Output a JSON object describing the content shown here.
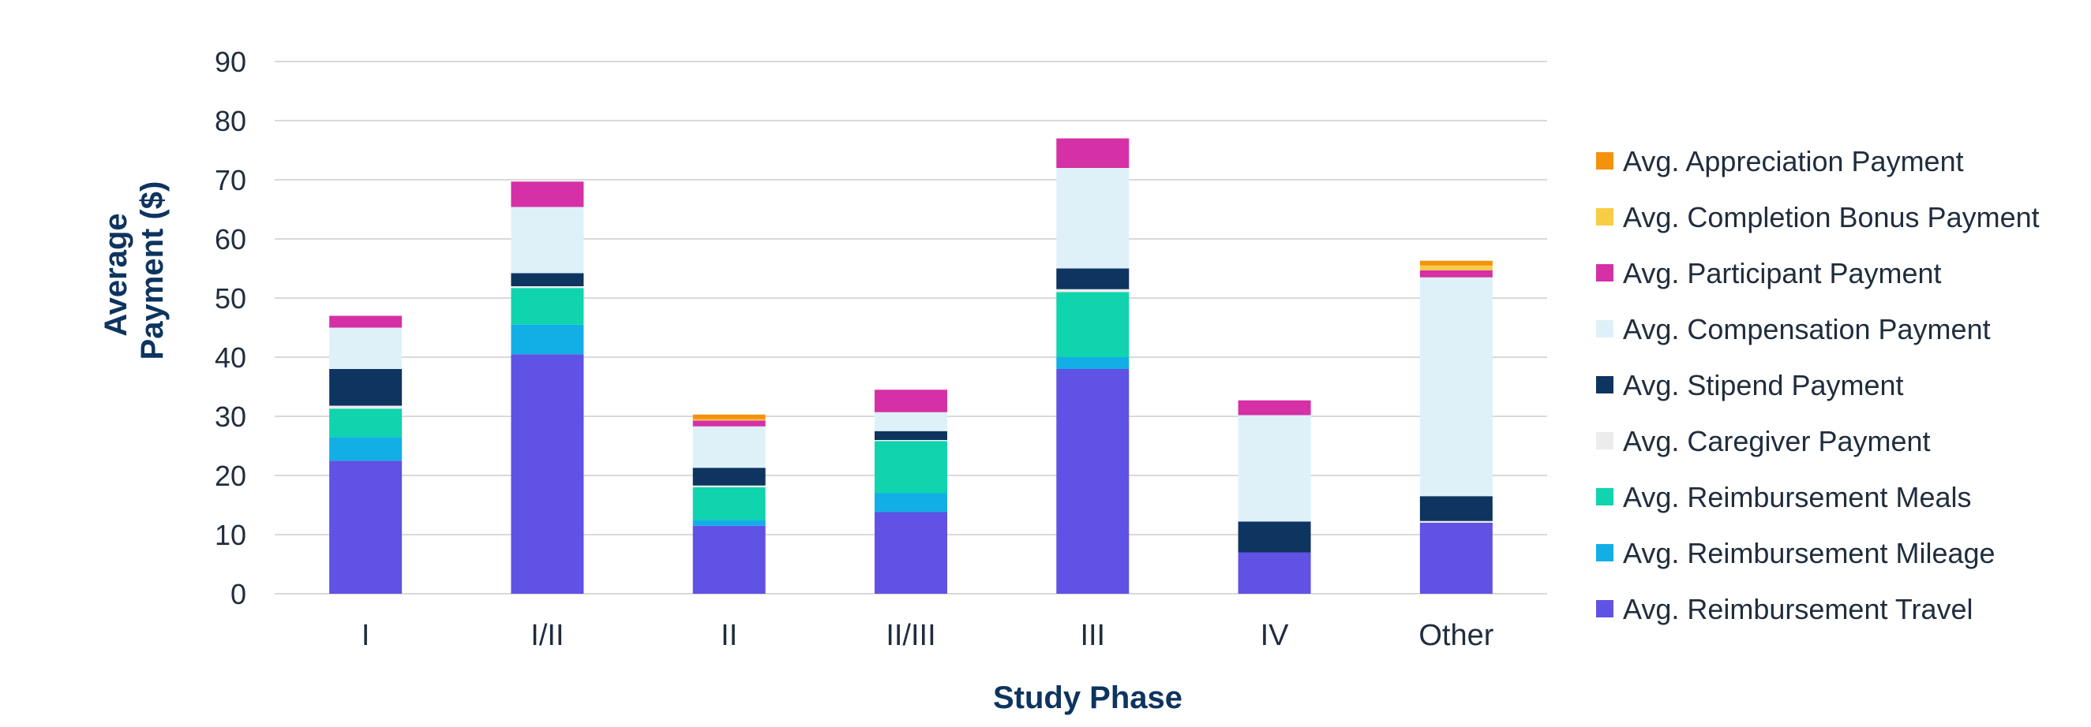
{
  "chart_data": {
    "type": "bar",
    "stacked": true,
    "title": "",
    "xlabel": "Study Phase",
    "ylabel_lines": [
      "Average",
      "Payment ($)"
    ],
    "ylim": [
      0,
      90
    ],
    "yticks": [
      0,
      10,
      20,
      30,
      40,
      50,
      60,
      70,
      80,
      90
    ],
    "categories": [
      "I",
      "I/II",
      "II",
      "II/III",
      "III",
      "IV",
      "Other"
    ],
    "series": [
      {
        "name": "Avg. Reimbursement Travel",
        "color": "#5f52e4",
        "values": [
          22.5,
          40.5,
          11.5,
          13.8,
          38.0,
          7.0,
          12.0
        ]
      },
      {
        "name": "Avg. Reimbursement Mileage",
        "color": "#12aee6",
        "values": [
          4.0,
          5.0,
          1.0,
          3.2,
          2.0,
          0,
          0
        ]
      },
      {
        "name": "Avg. Reimbursement Meals",
        "color": "#0fd4ad",
        "values": [
          4.8,
          6.2,
          5.5,
          8.8,
          11.0,
          0,
          0
        ]
      },
      {
        "name": "Avg. Caregiver Payment",
        "color": "#ececec",
        "values": [
          0.5,
          0.3,
          0.3,
          0.2,
          0.5,
          0,
          0.3
        ]
      },
      {
        "name": "Avg. Stipend Payment",
        "color": "#0e3460",
        "values": [
          6.2,
          2.2,
          3.0,
          1.5,
          3.5,
          5.2,
          4.2
        ]
      },
      {
        "name": "Avg. Compensation Payment",
        "color": "#def1f9",
        "values": [
          7.0,
          11.2,
          7.0,
          3.2,
          17.0,
          18.0,
          37.0
        ]
      },
      {
        "name": "Avg. Participant Payment",
        "color": "#d530a6",
        "values": [
          2.0,
          4.3,
          1.0,
          3.8,
          5.0,
          2.5,
          1.2
        ]
      },
      {
        "name": "Avg. Completion Bonus Payment",
        "color": "#f7cd45",
        "values": [
          0,
          0,
          0.2,
          0,
          0,
          0,
          0.8
        ]
      },
      {
        "name": "Avg. Appreciation Payment",
        "color": "#f5920c",
        "values": [
          0,
          0,
          0.8,
          0,
          0,
          0,
          0.8
        ]
      }
    ],
    "legend_position": "right",
    "legend_order": [
      "Avg. Appreciation Payment",
      "Avg. Completion Bonus Payment",
      "Avg. Participant Payment",
      "Avg. Compensation Payment",
      "Avg. Stipend Payment",
      "Avg. Caregiver Payment",
      "Avg. Reimbursement Meals",
      "Avg. Reimbursement Mileage",
      "Avg. Reimbursement Travel"
    ],
    "grid": true
  }
}
